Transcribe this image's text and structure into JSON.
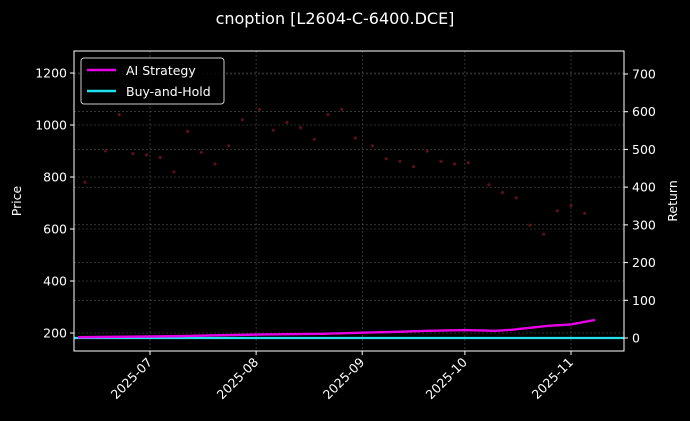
{
  "chart_data": {
    "type": "line",
    "title": "cnoption [L2604-C-6400.DCE]",
    "xlabel": "",
    "ylabel": "Price",
    "ylabel_right": "Return",
    "ylim": [
      130,
      1290
    ],
    "ylim_right": [
      -35,
      750
    ],
    "grid": true,
    "legend_position": "upper left",
    "x_ticks": [
      "2025-07",
      "2025-08",
      "2025-09",
      "2025-10",
      "2025-11"
    ],
    "y_ticks_left": [
      200,
      400,
      600,
      800,
      1000,
      1200
    ],
    "y_ticks_right": [
      0,
      100,
      200,
      300,
      400,
      500,
      600,
      700
    ],
    "legend": [
      "AI Strategy",
      "Buy-and-Hold"
    ],
    "colors": {
      "ai_strategy": "#e600e6",
      "buy_and_hold": "#22e0ee",
      "price_points": "#5a0f1c",
      "background": "#000000",
      "frame": "#ffffff",
      "grid": "#666666"
    },
    "series": [
      {
        "name": "AI Strategy",
        "axis": "right",
        "x": [
          "2025-06-10",
          "2025-06-20",
          "2025-07-01",
          "2025-07-10",
          "2025-07-20",
          "2025-08-01",
          "2025-08-10",
          "2025-08-20",
          "2025-09-01",
          "2025-09-10",
          "2025-09-20",
          "2025-10-01",
          "2025-10-10",
          "2025-10-15",
          "2025-10-20",
          "2025-10-25",
          "2025-11-01",
          "2025-11-08"
        ],
        "values": [
          2,
          3,
          4,
          5,
          7,
          9,
          10,
          11,
          14,
          16,
          19,
          21,
          19,
          22,
          27,
          32,
          36,
          48
        ]
      },
      {
        "name": "Buy-and-Hold",
        "axis": "right",
        "x": [
          "2025-06-10",
          "2025-11-08"
        ],
        "values": [
          0,
          0
        ]
      },
      {
        "name": "Price",
        "axis": "left",
        "type": "scatter",
        "x": [
          "2025-06-12",
          "2025-06-18",
          "2025-06-22",
          "2025-06-26",
          "2025-06-30",
          "2025-07-04",
          "2025-07-08",
          "2025-07-12",
          "2025-07-16",
          "2025-07-20",
          "2025-07-24",
          "2025-07-28",
          "2025-08-02",
          "2025-08-06",
          "2025-08-10",
          "2025-08-14",
          "2025-08-18",
          "2025-08-22",
          "2025-08-26",
          "2025-08-30",
          "2025-09-04",
          "2025-09-08",
          "2025-09-12",
          "2025-09-16",
          "2025-09-20",
          "2025-09-24",
          "2025-09-28",
          "2025-10-02",
          "2025-10-08",
          "2025-10-12",
          "2025-10-16",
          "2025-10-20",
          "2025-10-24",
          "2025-10-28",
          "2025-11-01",
          "2025-11-05"
        ],
        "values": [
          780,
          900,
          1040,
          890,
          885,
          875,
          820,
          975,
          895,
          850,
          920,
          1020,
          1060,
          980,
          1010,
          990,
          945,
          1040,
          1060,
          950,
          920,
          870,
          860,
          840,
          900,
          860,
          850,
          855,
          770,
          740,
          720,
          615,
          580,
          670,
          690,
          660
        ]
      }
    ]
  }
}
